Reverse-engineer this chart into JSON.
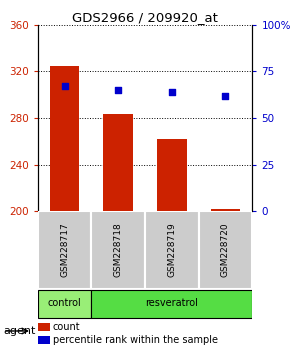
{
  "title": "GDS2966 / 209920_at",
  "samples": [
    "GSM228717",
    "GSM228718",
    "GSM228719",
    "GSM228720"
  ],
  "bar_values": [
    325,
    283,
    262,
    202
  ],
  "bar_bottom": 200,
  "percentile_values": [
    67,
    65,
    64,
    62
  ],
  "bar_color": "#cc2200",
  "dot_color": "#0000cc",
  "ylim_left": [
    200,
    360
  ],
  "ylim_right": [
    0,
    100
  ],
  "yticks_left": [
    200,
    240,
    280,
    320,
    360
  ],
  "yticks_right": [
    0,
    25,
    50,
    75,
    100
  ],
  "yticklabels_right": [
    "0",
    "25",
    "50",
    "75",
    "100%"
  ],
  "agent_colors": [
    "#99ee77",
    "#55dd44"
  ],
  "sample_bg_color": "#cccccc",
  "bar_width": 0.55,
  "dot_size": 20
}
